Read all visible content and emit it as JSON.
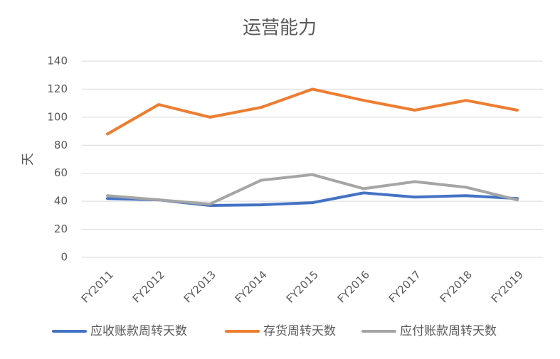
{
  "chart_data": {
    "type": "line",
    "title": "运营能力",
    "y_label": "天",
    "categories": [
      "FY2011",
      "FY2012",
      "FY2013",
      "FY2014",
      "FY2015",
      "FY2016",
      "FY2017",
      "FY2018",
      "FY2019"
    ],
    "series": [
      {
        "name": "应收账款周转天数",
        "color": "#4472c4",
        "values": [
          42,
          41,
          37,
          37.5,
          39,
          46,
          43,
          44,
          42
        ]
      },
      {
        "name": "存货周转天数",
        "color": "#ed7d31",
        "values": [
          88,
          109,
          100,
          107,
          120,
          112,
          105,
          112,
          105
        ]
      },
      {
        "name": "应付账款周转天数",
        "color": "#a5a5a5",
        "values": [
          44,
          41,
          38,
          55,
          59,
          49,
          54,
          50,
          41
        ]
      }
    ],
    "ylim": [
      0,
      140
    ],
    "yticks": [
      0,
      20,
      40,
      60,
      80,
      100,
      120,
      140
    ],
    "grid": true,
    "legend": "bottom"
  }
}
